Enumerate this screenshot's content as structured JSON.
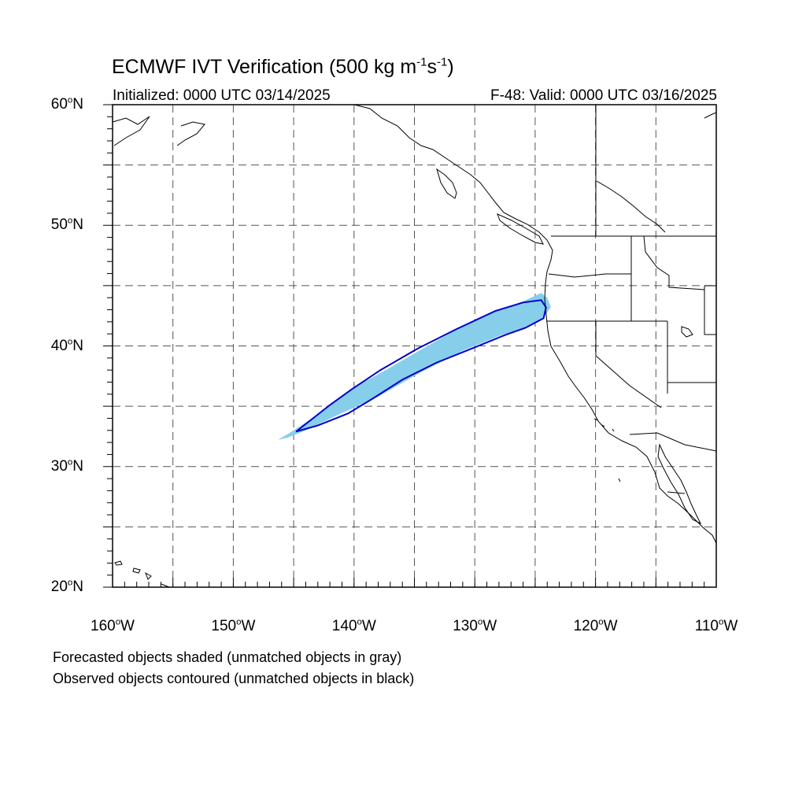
{
  "title": {
    "text": "ECMWF IVT Verification (500 kg m",
    "exp1": "-1",
    "mid": "s",
    "exp2": "-1",
    "end": ")"
  },
  "subtitle_left": "Initialized: 0000 UTC 03/14/2025",
  "subtitle_right": "F-48: Valid: 0000 UTC 03/16/2025",
  "footer": [
    "Forecasted objects shaded (unmatched objects in gray)",
    "Observed objects contoured (unmatched objects in black)"
  ],
  "map": {
    "lon_range": [
      -160,
      -110
    ],
    "lat_range": [
      20,
      60
    ],
    "lat_labels": [
      {
        "lat": 60,
        "num": "60",
        "deg": "o",
        "hemi": "N"
      },
      {
        "lat": 50,
        "num": "50",
        "deg": "o",
        "hemi": "N"
      },
      {
        "lat": 40,
        "num": "40",
        "deg": "o",
        "hemi": "N"
      },
      {
        "lat": 30,
        "num": "30",
        "deg": "o",
        "hemi": "N"
      },
      {
        "lat": 20,
        "num": "20",
        "deg": "o",
        "hemi": "N"
      }
    ],
    "lon_labels": [
      {
        "lon": -160,
        "num": "160",
        "deg": "o",
        "hemi": "W"
      },
      {
        "lon": -150,
        "num": "150",
        "deg": "o",
        "hemi": "W"
      },
      {
        "lon": -140,
        "num": "140",
        "deg": "o",
        "hemi": "W"
      },
      {
        "lon": -130,
        "num": "130",
        "deg": "o",
        "hemi": "W"
      },
      {
        "lon": -120,
        "num": "120",
        "deg": "o",
        "hemi": "W"
      },
      {
        "lon": -110,
        "num": "110",
        "deg": "o",
        "hemi": "W"
      }
    ],
    "colors": {
      "forecast_fill": "#87ceeb",
      "observed_contour": "#0000cd",
      "grid": "#555555",
      "coast": "#000000"
    },
    "forecast_object": [
      [
        -146.3,
        32.2
      ],
      [
        -145.0,
        33.0
      ],
      [
        -143.5,
        34.0
      ],
      [
        -142.2,
        35.0
      ],
      [
        -140.8,
        36.0
      ],
      [
        -139.2,
        37.0
      ],
      [
        -137.2,
        38.1
      ],
      [
        -134.8,
        39.5
      ],
      [
        -131.8,
        41.2
      ],
      [
        -128.8,
        42.7
      ],
      [
        -126.0,
        43.7
      ],
      [
        -124.5,
        44.4
      ],
      [
        -124.0,
        44.0
      ],
      [
        -123.7,
        43.2
      ],
      [
        -124.2,
        42.5
      ],
      [
        -125.5,
        41.6
      ],
      [
        -127.8,
        40.9
      ],
      [
        -131.0,
        39.6
      ],
      [
        -134.5,
        37.8
      ],
      [
        -138.0,
        35.8
      ],
      [
        -141.3,
        34.3
      ],
      [
        -144.0,
        33.0
      ],
      [
        -145.5,
        32.4
      ]
    ],
    "observed_object": [
      [
        -144.8,
        32.9
      ],
      [
        -143.4,
        34.0
      ],
      [
        -142.0,
        35.1
      ],
      [
        -140.2,
        36.4
      ],
      [
        -137.8,
        38.0
      ],
      [
        -134.7,
        39.8
      ],
      [
        -131.5,
        41.4
      ],
      [
        -128.3,
        42.9
      ],
      [
        -126.0,
        43.6
      ],
      [
        -124.5,
        43.8
      ],
      [
        -124.1,
        43.2
      ],
      [
        -124.3,
        42.3
      ],
      [
        -125.8,
        41.5
      ],
      [
        -127.5,
        40.9
      ],
      [
        -130.2,
        39.8
      ],
      [
        -133.2,
        38.6
      ],
      [
        -136.0,
        37.2
      ],
      [
        -138.5,
        35.6
      ],
      [
        -140.5,
        34.4
      ],
      [
        -143.0,
        33.4
      ],
      [
        -144.8,
        32.9
      ]
    ]
  }
}
